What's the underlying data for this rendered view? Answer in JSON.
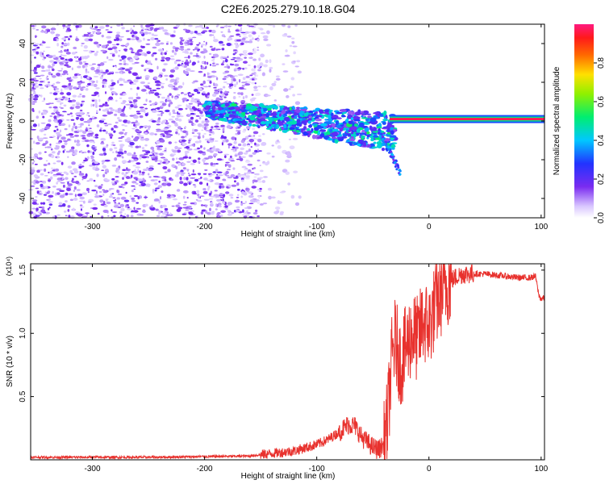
{
  "title": "C2E6.2025.279.10.18.G04",
  "colors": {
    "snr_line": "#e8312d",
    "spectro_low": "#e0c8ff",
    "spectro_mid": "#6a1fe0",
    "spectro_high": "#ff2020"
  },
  "chart_data": [
    {
      "type": "heatmap",
      "xlabel": "Height of straight line (km)",
      "ylabel": "Frequency (Hz)",
      "xlim": [
        -355,
        103
      ],
      "ylim": [
        -50,
        50
      ],
      "x_ticks": [
        -300,
        -200,
        -100,
        0,
        100
      ],
      "y_ticks": [
        -40,
        -20,
        0,
        20,
        40
      ],
      "grid": false,
      "colorbar": {
        "label": "Normalized spectral amplitude",
        "range": [
          0.0,
          1.0
        ],
        "ticks": [
          "0.0",
          "0.2",
          "0.4",
          "0.6",
          "0.8"
        ],
        "colormap": "rainbow (violet → blue → cyan → green → yellow → red → magenta)"
      },
      "description_features": {
        "noise_region_x": [
          -355,
          -150
        ],
        "scatter_region_x": [
          -200,
          -25
        ],
        "tone_x_start": -35,
        "tone_frequency": 1,
        "tone_amplitude": 0.97
      }
    },
    {
      "type": "line",
      "xlabel": "Height of straight line (km)",
      "ylabel": "SNR (10 * v/v)",
      "y_multiplier": "(x10⁴)",
      "xlim": [
        -355,
        103
      ],
      "ylim": [
        0,
        1.55
      ],
      "x_ticks": [
        -300,
        -200,
        -100,
        0,
        100
      ],
      "y_ticks": [
        0.5,
        1.0,
        1.5
      ],
      "y_tick_labels": [
        "0.5",
        "1.0",
        "1.5"
      ],
      "grid": false,
      "series": [
        {
          "x": [
            -355,
            -300,
            -250,
            -200,
            -160,
            -140,
            -120,
            -100,
            -90,
            -80,
            -72,
            -66,
            -60,
            -50,
            -45,
            -40,
            -37,
            -35,
            -33,
            -30,
            -25,
            -20,
            -15,
            -10,
            -5,
            0,
            5,
            10,
            15,
            20,
            25,
            30,
            40,
            50,
            60,
            70,
            80,
            90,
            95,
            98,
            100,
            103
          ],
          "y": [
            0.02,
            0.02,
            0.02,
            0.025,
            0.03,
            0.05,
            0.07,
            0.12,
            0.16,
            0.22,
            0.28,
            0.27,
            0.18,
            0.1,
            0.08,
            0.12,
            0.3,
            0.55,
            0.8,
            0.95,
            0.75,
            0.9,
            1.0,
            0.95,
            1.1,
            1.05,
            1.2,
            1.3,
            1.38,
            1.42,
            1.45,
            1.47,
            1.47,
            1.47,
            1.46,
            1.45,
            1.44,
            1.44,
            1.45,
            1.3,
            1.27,
            1.28
          ]
        }
      ]
    }
  ]
}
